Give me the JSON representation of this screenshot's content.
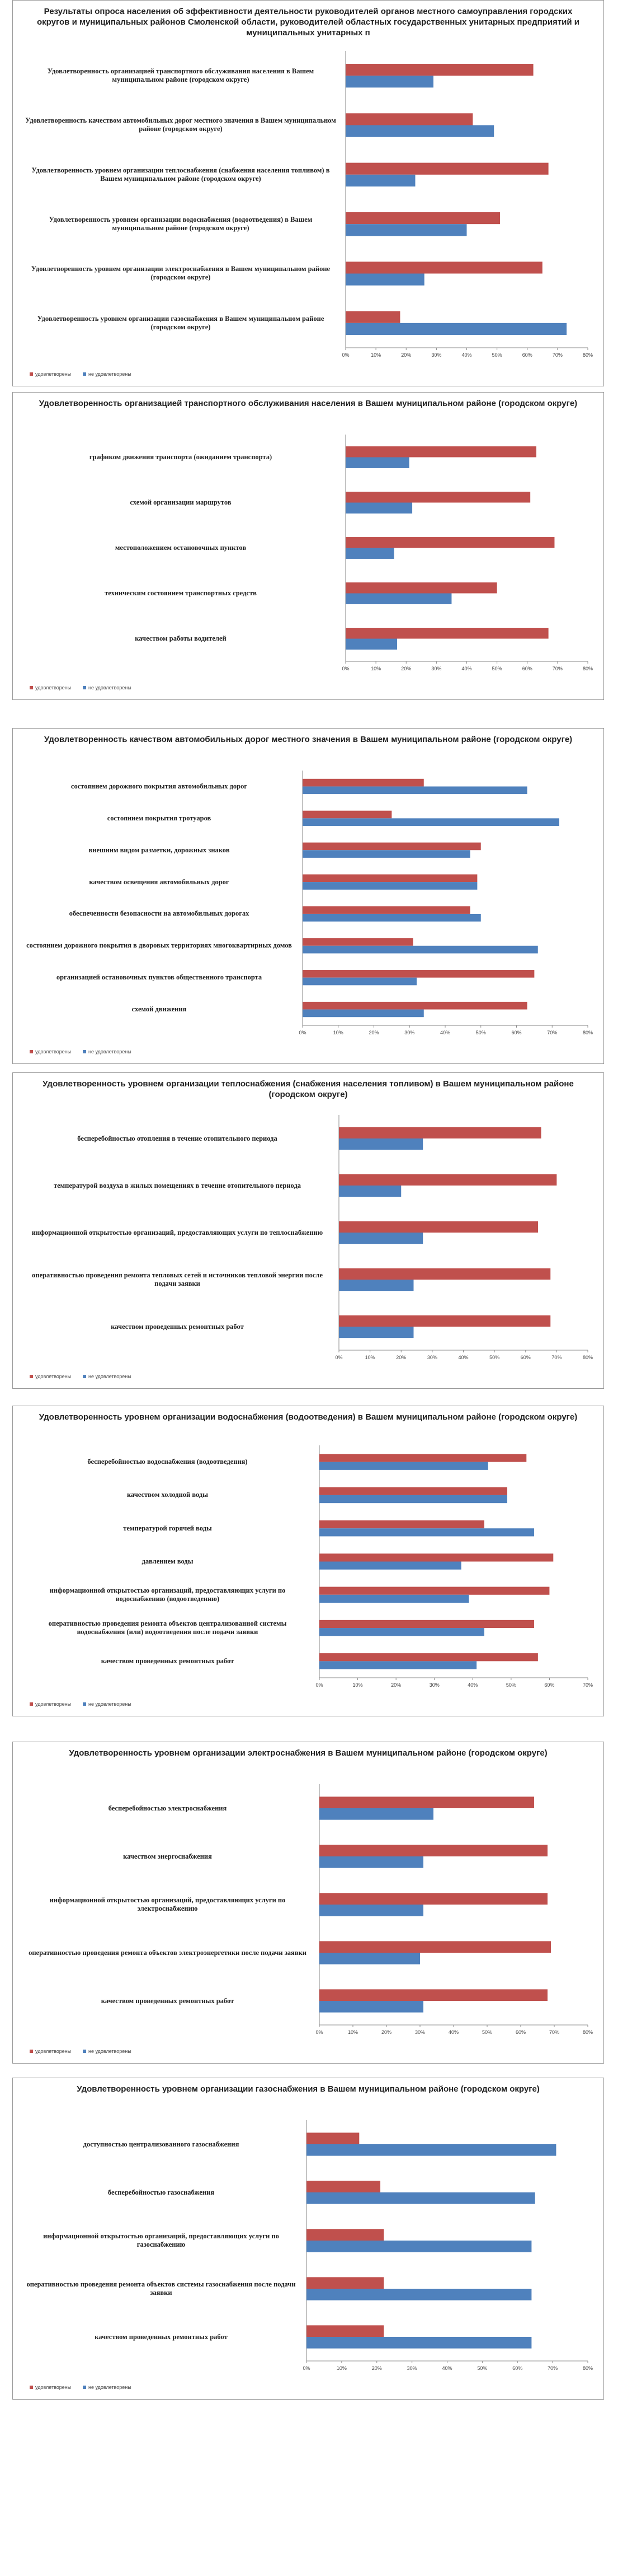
{
  "chart_data": [
    {
      "type": "barh",
      "title": "Результаты опроса населения об эффективности деятельности руководителей органов местного самоуправления городских округов и муниципальных районов Смоленской области, руководителей областных государственных унитарных предприятий и муниципальных унитарных п",
      "categories": [
        "Удовлетворенность организацией транспортного обслуживания населения в Вашем муниципальном районе (городском округе)",
        "Удовлетворенность качеством автомобильных дорог местного значения в Вашем муниципальном районе (городском округе)",
        "Удовлетворенность уровнем организации теплоснабжения (снабжения населения топливом) в Вашем муниципальном районе (городском округе)",
        "Удовлетворенность уровнем организации водоснабжения (водоотведения) в Вашем муниципальном районе (городском округе)",
        "Удовлетворенность уровнем организации электроснабжения в Вашем муниципальном районе (городском округе)",
        "Удовлетворенность уровнем организации газоснабжения в Вашем муниципальном районе (городском округе)"
      ],
      "series": [
        {
          "name": "удовлетворены",
          "color": "#c0504d",
          "values": [
            62,
            42,
            67,
            51,
            65,
            18
          ]
        },
        {
          "name": "не удовлетворены",
          "color": "#4f81bd",
          "values": [
            29,
            49,
            23,
            40,
            26,
            73
          ]
        }
      ],
      "xlim": [
        0,
        80
      ],
      "xticks": [
        {
          "value": 0,
          "label": "0%"
        },
        {
          "value": 10,
          "label": "10%"
        },
        {
          "value": 20,
          "label": "20%"
        },
        {
          "value": 30,
          "label": "30%"
        },
        {
          "value": 40,
          "label": "40%"
        },
        {
          "value": 50,
          "label": "50%"
        },
        {
          "value": 60,
          "label": "60%"
        },
        {
          "value": 70,
          "label": "70%"
        },
        {
          "value": 80,
          "label": "80%"
        }
      ]
    },
    {
      "type": "barh",
      "title": "Удовлетворенность организацией транспортного обслуживания населения в Вашем муниципальном районе (городском округе)",
      "categories": [
        "графиком движения транспорта (ожиданием транспорта)",
        "схемой организации маршрутов",
        "местоположением остановочных пунктов",
        "техническим состоянием транспортных средств",
        "качеством работы водителей"
      ],
      "series": [
        {
          "name": "удовлетворены",
          "color": "#c0504d",
          "values": [
            63,
            61,
            69,
            50,
            67
          ]
        },
        {
          "name": "не удовлетворены",
          "color": "#4f81bd",
          "values": [
            21,
            22,
            16,
            35,
            17
          ]
        }
      ],
      "xlim": [
        0,
        80
      ],
      "xticks": [
        {
          "value": 0,
          "label": "0%"
        },
        {
          "value": 10,
          "label": "10%"
        },
        {
          "value": 20,
          "label": "20%"
        },
        {
          "value": 30,
          "label": "30%"
        },
        {
          "value": 40,
          "label": "40%"
        },
        {
          "value": 50,
          "label": "50%"
        },
        {
          "value": 60,
          "label": "60%"
        },
        {
          "value": 70,
          "label": "70%"
        },
        {
          "value": 80,
          "label": "80%"
        }
      ]
    },
    {
      "type": "barh",
      "title": "Удовлетворенность качеством автомобильных дорог местного значения в Вашем муниципальном районе (городском округе)",
      "categories": [
        "состоянием дорожного покрытия автомобильных дорог",
        "состоянием покрытия тротуаров",
        "внешним видом разметки, дорожных знаков",
        "качеством освещения автомобильных дорог",
        "обеспеченности безопасности на автомобильных дорогах",
        "состоянием дорожного покрытия в дворовых территориях многоквартирных домов",
        "организацией остановочных пунктов общественного транспорта",
        "схемой движения"
      ],
      "series": [
        {
          "name": "удовлетворены",
          "color": "#c0504d",
          "values": [
            34,
            25,
            50,
            49,
            47,
            31,
            65,
            63
          ]
        },
        {
          "name": "не удовлетворены",
          "color": "#4f81bd",
          "values": [
            63,
            72,
            47,
            49,
            50,
            66,
            32,
            34
          ]
        }
      ],
      "xlim": [
        0,
        80
      ],
      "xticks": [
        {
          "value": 0,
          "label": "0%"
        },
        {
          "value": 10,
          "label": "10%"
        },
        {
          "value": 20,
          "label": "20%"
        },
        {
          "value": 30,
          "label": "30%"
        },
        {
          "value": 40,
          "label": "40%"
        },
        {
          "value": 50,
          "label": "50%"
        },
        {
          "value": 60,
          "label": "60%"
        },
        {
          "value": 70,
          "label": "70%"
        },
        {
          "value": 80,
          "label": "80%"
        }
      ]
    },
    {
      "type": "barh",
      "title": "Удовлетворенность уровнем организации теплоснабжения (снабжения населения топливом) в Вашем муниципальном районе (городском округе)",
      "categories": [
        "бесперебойностью отопления в течение отопительного периода",
        "температурой воздуха в жилых помещениях в течение отопительного периода",
        "информационной открытостью организаций, предоставляющих услуги по теплоснабжению",
        "оперативностью проведения ремонта тепловых сетей и источников тепловой энергии после подачи заявки",
        "качеством проведенных ремонтных работ"
      ],
      "series": [
        {
          "name": "удовлетворены",
          "color": "#c0504d",
          "values": [
            65,
            70,
            64,
            68,
            68
          ]
        },
        {
          "name": "не удовлетворены",
          "color": "#4f81bd",
          "values": [
            27,
            20,
            27,
            24,
            24
          ]
        }
      ],
      "xlim": [
        0,
        80
      ],
      "xticks": [
        {
          "value": 0,
          "label": "0%"
        },
        {
          "value": 10,
          "label": "10%"
        },
        {
          "value": 20,
          "label": "20%"
        },
        {
          "value": 30,
          "label": "30%"
        },
        {
          "value": 40,
          "label": "40%"
        },
        {
          "value": 50,
          "label": "50%"
        },
        {
          "value": 60,
          "label": "60%"
        },
        {
          "value": 70,
          "label": "70%"
        },
        {
          "value": 80,
          "label": "80%"
        }
      ]
    },
    {
      "type": "barh",
      "title": "Удовлетворенность уровнем организации водоснабжения (водоотведения) в Вашем муниципальном районе (городском округе)",
      "categories": [
        "бесперебойностью водоснабжения (водоотведения)",
        "качеством холодной воды",
        "температурой горячей воды",
        "давлением воды",
        "информационной открытостью организаций, предоставляющих услуги по водоснабжению (водоотведению)",
        "оперативностью проведения ремонта объектов централизованной системы водоснабжения (или) водоотведения после подачи заявки",
        "качеством проведенных ремонтных работ"
      ],
      "series": [
        {
          "name": "удовлетворены",
          "color": "#c0504d",
          "values": [
            54,
            49,
            43,
            61,
            60,
            56,
            57
          ]
        },
        {
          "name": "не удовлетворены",
          "color": "#4f81bd",
          "values": [
            44,
            49,
            56,
            37,
            39,
            43,
            41
          ]
        }
      ],
      "xlim": [
        0,
        70
      ],
      "xticks": [
        {
          "value": 0,
          "label": "0%"
        },
        {
          "value": 10,
          "label": "10%"
        },
        {
          "value": 20,
          "label": "20%"
        },
        {
          "value": 30,
          "label": "30%"
        },
        {
          "value": 40,
          "label": "40%"
        },
        {
          "value": 50,
          "label": "50%"
        },
        {
          "value": 60,
          "label": "60%"
        },
        {
          "value": 70,
          "label": "70%"
        }
      ]
    },
    {
      "type": "barh",
      "title": "Удовлетворенность уровнем организации электроснабжения в Вашем муниципальном районе (городском округе)",
      "categories": [
        "бесперебойностью электроснабжения",
        "качеством энергоснабжения",
        "информационной открытостью организаций, предоставляющих услуги по электроснабжению",
        "оперативностью проведения ремонта объектов электроэнергетики после подачи заявки",
        "качеством проведенных ремонтных работ"
      ],
      "series": [
        {
          "name": "удовлетворены",
          "color": "#c0504d",
          "values": [
            64,
            68,
            68,
            69,
            68
          ]
        },
        {
          "name": "не удовлетворены",
          "color": "#4f81bd",
          "values": [
            34,
            31,
            31,
            30,
            31
          ]
        }
      ],
      "xlim": [
        0,
        80
      ],
      "xticks": [
        {
          "value": 0,
          "label": "0%"
        },
        {
          "value": 10,
          "label": "10%"
        },
        {
          "value": 20,
          "label": "20%"
        },
        {
          "value": 30,
          "label": "30%"
        },
        {
          "value": 40,
          "label": "40%"
        },
        {
          "value": 50,
          "label": "50%"
        },
        {
          "value": 60,
          "label": "60%"
        },
        {
          "value": 70,
          "label": "70%"
        },
        {
          "value": 80,
          "label": "80%"
        }
      ]
    },
    {
      "type": "barh",
      "title": "Удовлетворенность уровнем организации газоснабжения в Вашем муниципальном районе (городском округе)",
      "categories": [
        "доступностью централизованного газоснабжения",
        "бесперебойностью газоснабжения",
        "информационной открытостью организаций, предоставляющих услуги по газоснабжению",
        "оперативностью проведения ремонта объектов системы газоснабжения после подачи заявки",
        "качеством проведенных ремонтных работ"
      ],
      "series": [
        {
          "name": "удовлетворены",
          "color": "#c0504d",
          "values": [
            15,
            21,
            22,
            22,
            22
          ]
        },
        {
          "name": "не удовлетворены",
          "color": "#4f81bd",
          "values": [
            71,
            65,
            64,
            64,
            64
          ]
        }
      ],
      "xlim": [
        0,
        80
      ],
      "xticks": [
        {
          "value": 0,
          "label": "0%"
        },
        {
          "value": 10,
          "label": "10%"
        },
        {
          "value": 20,
          "label": "20%"
        },
        {
          "value": 30,
          "label": "30%"
        },
        {
          "value": 40,
          "label": "40%"
        },
        {
          "value": 50,
          "label": "50%"
        },
        {
          "value": 60,
          "label": "60%"
        },
        {
          "value": 70,
          "label": "70%"
        },
        {
          "value": 80,
          "label": "80%"
        }
      ]
    }
  ]
}
